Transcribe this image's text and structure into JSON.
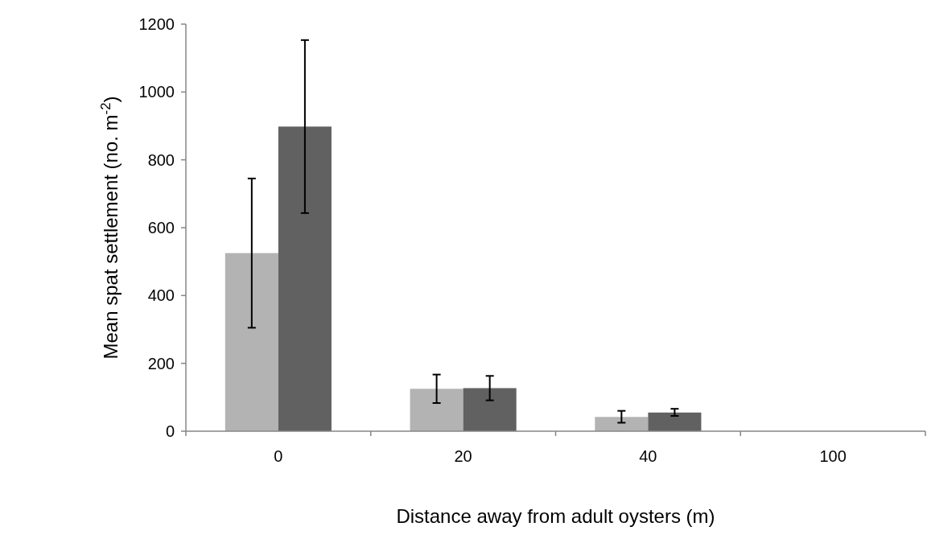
{
  "chart_data": {
    "type": "bar",
    "xlabel": "Distance away from adult oysters (m)",
    "ylabel": "Mean spat settlement (no. m$^{-2}$)",
    "categories": [
      "0",
      "20",
      "40",
      "100"
    ],
    "series": [
      {
        "color": "#b3b3b3",
        "values": [
          525,
          125,
          42,
          0
        ],
        "errors": [
          [
            305,
            745
          ],
          [
            83,
            167
          ],
          [
            25,
            60
          ],
          null
        ]
      },
      {
        "color": "#616161",
        "values": [
          898,
          127,
          55,
          0
        ],
        "errors": [
          [
            643,
            1153
          ],
          [
            91,
            163
          ],
          [
            45,
            66
          ],
          null
        ]
      }
    ],
    "ylim": [
      0,
      1200
    ],
    "yticks": [
      0,
      200,
      400,
      600,
      800,
      1000,
      1200
    ],
    "grid": false
  }
}
